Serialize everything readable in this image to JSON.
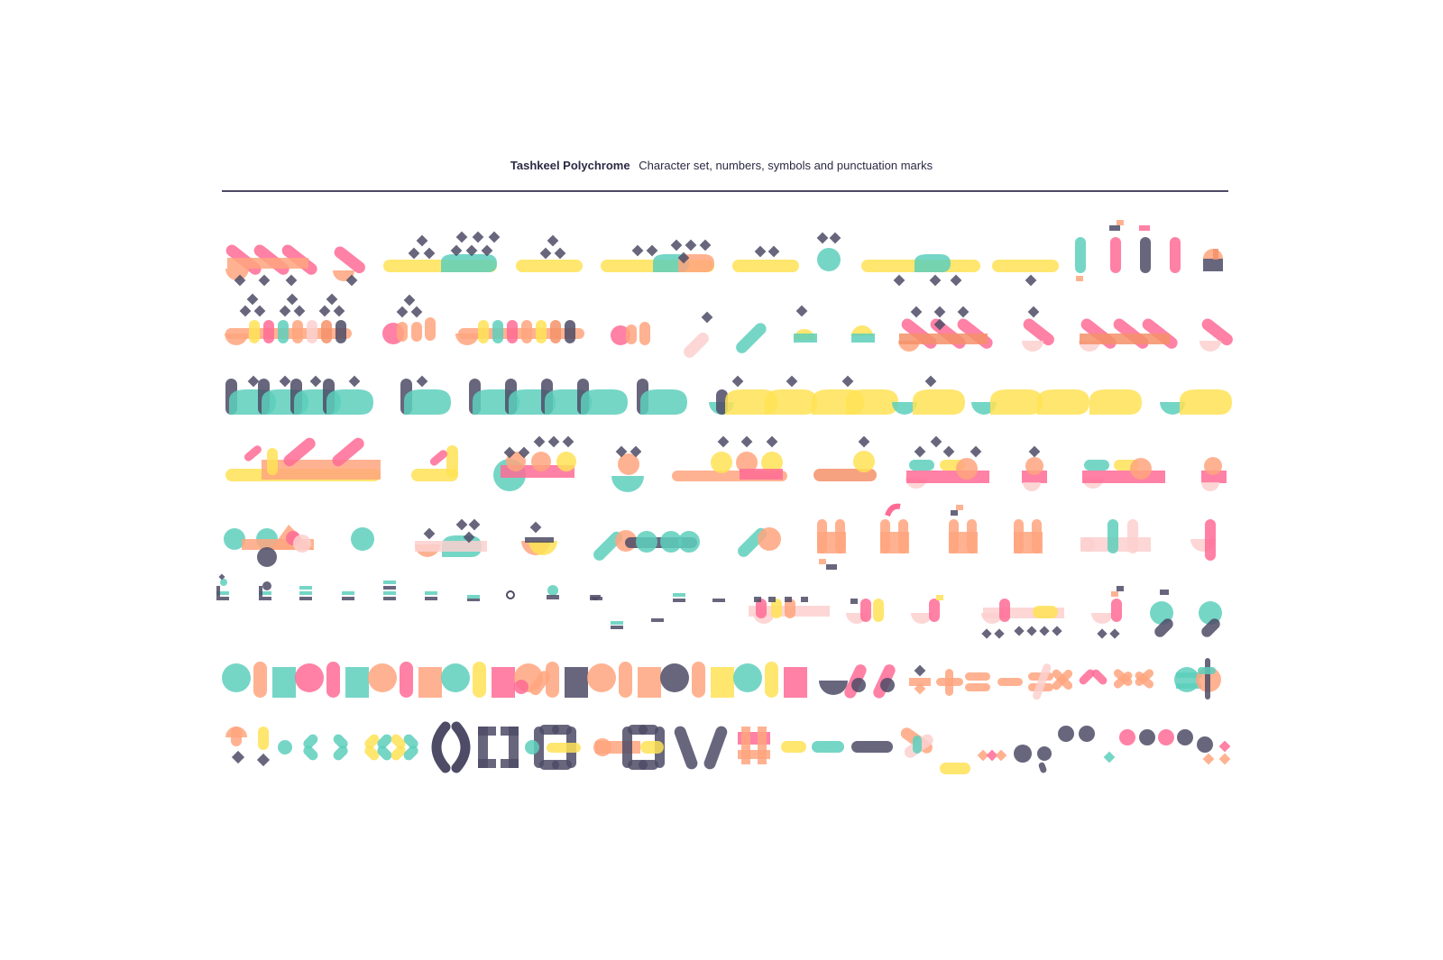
{
  "header": {
    "brand": "Tashkeel Polychrome",
    "caption": "Character set, numbers, symbols and punctuation marks"
  },
  "palette": {
    "pink": "#ff6b95",
    "salmon": "#ffa47e",
    "orange": "#f49169",
    "teal": "#5dcfbc",
    "yellow": "#ffe255",
    "navy": "#4d4b66",
    "blush": "#fbd0cf",
    "rule": "#4c4a63",
    "text": "#2b2a45"
  },
  "rows": [
    {
      "name": "glyph-row-1",
      "content": "isolated and final Arabic letter forms (alef, beh, teh, theh, sheen, zain)"
    },
    {
      "name": "glyph-row-2",
      "content": "medial and initial letter forms with stacked dots"
    },
    {
      "name": "glyph-row-3",
      "content": "tah, zah, sad and dad letter forms"
    },
    {
      "name": "glyph-row-4",
      "content": "feh, qaf, ain and ghain letter forms"
    },
    {
      "name": "glyph-row-5",
      "content": "heh, waw, lam and ligature forms"
    },
    {
      "name": "glyph-row-6",
      "content": "diacritic marks and small ligatures"
    },
    {
      "name": "glyph-row-7",
      "content": "Arabic and Latin numerals, percent and math symbols"
    },
    {
      "name": "glyph-row-8",
      "content": "punctuation, brackets, dashes and quotation marks"
    }
  ],
  "numerals": [
    "9",
    "8",
    "7",
    "6",
    "5",
    "4",
    "3",
    "2",
    "1",
    "0",
    "%",
    "%",
    "÷",
    "+",
    "=",
    "-",
    "≠",
    "×",
    "^",
    ">",
    "<",
    "€",
    "$"
  ],
  "punctuation": [
    "؟",
    "!",
    "·",
    "‹",
    "›",
    "«",
    "»",
    "(",
    ")",
    "[",
    "]",
    "{",
    "}",
    "\\",
    "/",
    "#",
    "-",
    "–",
    "—",
    "*",
    "_",
    "…",
    "،",
    "«",
    "»",
    "؛"
  ]
}
